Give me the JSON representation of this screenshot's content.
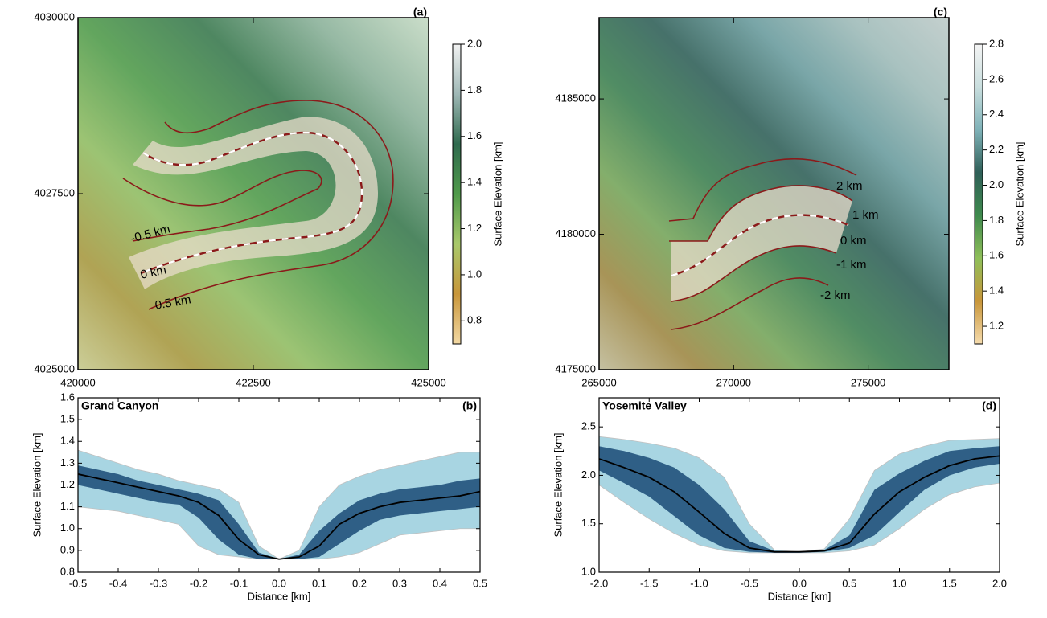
{
  "chart_data": [
    {
      "type": "map",
      "panel": "(a)",
      "xlim": [
        420000,
        425000
      ],
      "xticks": [
        420000,
        422500,
        425000
      ],
      "ylim": [
        4025000,
        4030000
      ],
      "yticks": [
        4025000,
        4027500,
        4030000
      ],
      "annotations": [
        "-0.5 km",
        "0 km",
        "0.5 km"
      ],
      "colorbar": {
        "label": "Surface Elevation [km]",
        "lim": [
          0.7,
          2.0
        ],
        "ticks": [
          0.8,
          {
            "value": 1,
            "label": "1.0"
          },
          1.2,
          1.4,
          1.6,
          1.8,
          {
            "value": 2,
            "label": "2.0"
          }
        ],
        "colors": [
          "#f3d9a4",
          "#c8963a",
          "#a9c96b",
          "#4f9a4a",
          "#2f6a4e",
          "#9fb8b6",
          "#f2f2f2"
        ]
      }
    },
    {
      "type": "area",
      "panel": "(b)",
      "title": "Grand Canyon",
      "xlabel": "Distance [km]",
      "ylabel": "Surface Elevation [km]",
      "x": [
        -0.5,
        -0.45,
        -0.4,
        -0.35,
        -0.3,
        -0.25,
        -0.2,
        -0.15,
        -0.1,
        -0.05,
        0,
        0.05,
        0.1,
        0.15,
        0.2,
        0.25,
        0.3,
        0.35,
        0.4,
        0.45,
        0.5
      ],
      "xlim": [
        -0.5,
        0.5
      ],
      "xticks": [
        -0.5,
        -0.4,
        -0.3,
        -0.2,
        -0.1,
        {
          "value": 0,
          "label": "0.0"
        },
        0.1,
        0.2,
        0.3,
        0.4,
        0.5
      ],
      "ylim": [
        0.8,
        1.6
      ],
      "yticks": [
        0.8,
        0.9,
        {
          "value": 1,
          "label": "1.0"
        },
        1.1,
        1.2,
        1.3,
        1.4,
        1.5,
        1.6
      ],
      "bands": [
        {
          "color": "#a8d5e2",
          "lower": [
            1.1,
            1.09,
            1.08,
            1.06,
            1.04,
            1.02,
            0.92,
            0.88,
            0.87,
            0.86,
            0.86,
            0.86,
            0.86,
            0.87,
            0.89,
            0.93,
            0.97,
            0.98,
            0.99,
            1.0,
            1.0
          ],
          "upper": [
            1.36,
            1.33,
            1.3,
            1.27,
            1.25,
            1.22,
            1.2,
            1.18,
            1.12,
            0.92,
            0.86,
            0.9,
            1.1,
            1.2,
            1.24,
            1.27,
            1.29,
            1.31,
            1.33,
            1.35,
            1.35
          ]
        },
        {
          "color": "#2f5f86",
          "lower": [
            1.2,
            1.18,
            1.16,
            1.14,
            1.12,
            1.11,
            1.05,
            0.95,
            0.88,
            0.86,
            0.86,
            0.86,
            0.87,
            0.93,
            0.99,
            1.04,
            1.06,
            1.07,
            1.08,
            1.09,
            1.1
          ],
          "upper": [
            1.29,
            1.27,
            1.25,
            1.22,
            1.2,
            1.18,
            1.16,
            1.13,
            1.02,
            0.89,
            0.86,
            0.88,
            0.99,
            1.07,
            1.13,
            1.16,
            1.18,
            1.19,
            1.2,
            1.22,
            1.23
          ]
        }
      ],
      "line": {
        "color": "#000000",
        "values": [
          1.25,
          1.23,
          1.21,
          1.19,
          1.17,
          1.15,
          1.12,
          1.06,
          0.95,
          0.88,
          0.86,
          0.87,
          0.92,
          1.02,
          1.07,
          1.1,
          1.12,
          1.13,
          1.14,
          1.15,
          1.17
        ]
      }
    },
    {
      "type": "map",
      "panel": "(c)",
      "xlim": [
        265000,
        278000
      ],
      "xticks": [
        265000,
        270000,
        275000
      ],
      "ylim": [
        4175000,
        4188000
      ],
      "yticks": [
        4175000,
        4180000,
        4185000
      ],
      "annotations": [
        "2 km",
        "1 km",
        "0 km",
        "-1 km",
        "-2 km"
      ],
      "colorbar": {
        "label": "Surface Elevation [km]",
        "lim": [
          1.1,
          2.8
        ],
        "ticks": [
          1.2,
          1.4,
          1.6,
          1.8,
          {
            "value": 2,
            "label": "2.0"
          },
          2.2,
          2.4,
          2.6,
          2.8
        ],
        "colors": [
          "#f6dcae",
          "#c8963a",
          "#8fbf5a",
          "#3f8a4d",
          "#2f5f58",
          "#7fb2b8",
          "#c9dede",
          "#f4f4f4"
        ]
      }
    },
    {
      "type": "area",
      "panel": "(d)",
      "title": "Yosemite Valley",
      "xlabel": "Distance [km]",
      "ylabel": "Surface Elevation [km]",
      "x": [
        -2,
        -1.75,
        -1.5,
        -1.25,
        -1,
        -0.75,
        -0.5,
        -0.25,
        0,
        0.25,
        0.5,
        0.75,
        1,
        1.25,
        1.5,
        1.75,
        2
      ],
      "xlim": [
        -2,
        2
      ],
      "xticks": [
        {
          "value": -2,
          "label": "-2.0"
        },
        -1.5,
        {
          "value": -1,
          "label": "-1.0"
        },
        -0.5,
        {
          "value": 0,
          "label": "0.0"
        },
        0.5,
        {
          "value": 1,
          "label": "1.0"
        },
        1.5,
        {
          "value": 2,
          "label": "2.0"
        }
      ],
      "ylim": [
        1,
        2.8
      ],
      "yticks": [
        {
          "value": 1,
          "label": "1.0"
        },
        1.5,
        {
          "value": 2,
          "label": "2.0"
        },
        2.5
      ],
      "bands": [
        {
          "color": "#a8d5e2",
          "lower": [
            1.9,
            1.72,
            1.55,
            1.4,
            1.28,
            1.22,
            1.2,
            1.2,
            1.2,
            1.2,
            1.22,
            1.28,
            1.45,
            1.65,
            1.8,
            1.88,
            1.92
          ],
          "upper": [
            2.4,
            2.37,
            2.33,
            2.28,
            2.18,
            1.98,
            1.5,
            1.23,
            1.21,
            1.24,
            1.55,
            2.05,
            2.22,
            2.3,
            2.36,
            2.37,
            2.38
          ]
        },
        {
          "color": "#2f5f86",
          "lower": [
            2.05,
            1.92,
            1.78,
            1.58,
            1.38,
            1.25,
            1.21,
            1.2,
            1.2,
            1.21,
            1.25,
            1.38,
            1.62,
            1.85,
            2.0,
            2.08,
            2.12
          ],
          "upper": [
            2.3,
            2.25,
            2.18,
            2.08,
            1.9,
            1.65,
            1.32,
            1.22,
            1.21,
            1.23,
            1.38,
            1.85,
            2.02,
            2.15,
            2.25,
            2.28,
            2.3
          ]
        }
      ],
      "line": {
        "color": "#000000",
        "values": [
          2.17,
          2.08,
          1.98,
          1.83,
          1.62,
          1.4,
          1.25,
          1.21,
          1.21,
          1.22,
          1.3,
          1.6,
          1.83,
          1.98,
          2.1,
          2.17,
          2.2
        ]
      }
    }
  ]
}
